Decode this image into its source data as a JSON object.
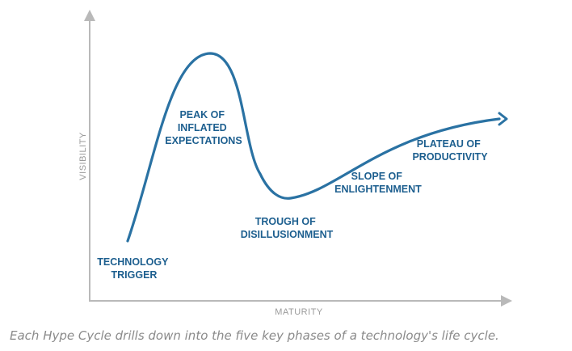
{
  "diagram": {
    "y_axis_label": "VISIBILITY",
    "x_axis_label": "MATURITY",
    "curve_color": "#2a72a3",
    "label_color": "#1d5f8f",
    "phases": [
      {
        "lines": [
          "TECHNOLOGY",
          "TRIGGER"
        ]
      },
      {
        "lines": [
          "PEAK OF",
          "INFLATED",
          "EXPECTATIONS"
        ]
      },
      {
        "lines": [
          "TROUGH OF",
          "DISILLUSIONMENT"
        ]
      },
      {
        "lines": [
          "SLOPE OF",
          "ENLIGHTENMENT"
        ]
      },
      {
        "lines": [
          "PLATEAU OF",
          "PRODUCTIVITY"
        ]
      }
    ]
  },
  "caption": {
    "text": "Each Hype Cycle drills down into the five key phases of a technology's life cycle."
  }
}
